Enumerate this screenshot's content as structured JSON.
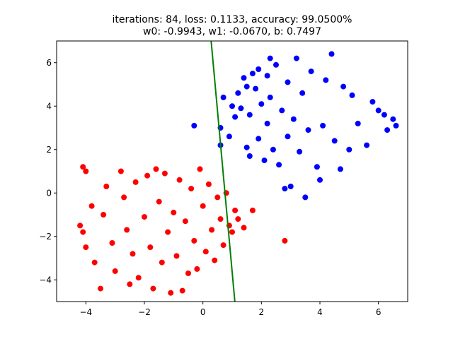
{
  "chart_data": {
    "type": "scatter",
    "title_lines": [
      "iterations: 84, loss: 0.1133, accuracy: 99.0500%",
      "w0: -0.9943, w1: -0.0670, b: 0.7497"
    ],
    "xlabel": "",
    "ylabel": "",
    "xlim": [
      -5,
      7
    ],
    "ylim": [
      -5,
      7
    ],
    "x_ticks": [
      -4,
      -2,
      0,
      2,
      4,
      6
    ],
    "y_ticks": [
      -4,
      -2,
      0,
      2,
      4,
      6
    ],
    "x_tick_labels": [
      "−4",
      "−2",
      "0",
      "2",
      "4",
      "6"
    ],
    "y_tick_labels": [
      "−4",
      "−2",
      "0",
      "2",
      "4",
      "6"
    ],
    "grid": false,
    "series": [
      {
        "color": "#0000ff",
        "points": [
          [
            -0.3,
            3.1
          ],
          [
            0.6,
            3.0
          ],
          [
            0.6,
            2.2
          ],
          [
            0.7,
            4.4
          ],
          [
            0.9,
            2.6
          ],
          [
            1.0,
            4.0
          ],
          [
            1.1,
            3.5
          ],
          [
            1.2,
            4.6
          ],
          [
            1.3,
            3.9
          ],
          [
            1.4,
            5.3
          ],
          [
            1.5,
            2.1
          ],
          [
            1.5,
            4.9
          ],
          [
            1.6,
            1.7
          ],
          [
            1.6,
            3.6
          ],
          [
            1.7,
            5.5
          ],
          [
            1.8,
            4.8
          ],
          [
            1.9,
            2.5
          ],
          [
            1.9,
            5.7
          ],
          [
            2.0,
            4.1
          ],
          [
            2.1,
            1.5
          ],
          [
            2.2,
            3.2
          ],
          [
            2.2,
            5.4
          ],
          [
            2.3,
            6.2
          ],
          [
            2.3,
            4.4
          ],
          [
            2.4,
            2.0
          ],
          [
            2.5,
            5.9
          ],
          [
            2.6,
            1.3
          ],
          [
            2.7,
            3.8
          ],
          [
            2.8,
            0.2
          ],
          [
            2.9,
            2.6
          ],
          [
            2.9,
            5.1
          ],
          [
            3.0,
            0.3
          ],
          [
            3.1,
            3.4
          ],
          [
            3.2,
            6.2
          ],
          [
            3.3,
            1.9
          ],
          [
            3.4,
            4.6
          ],
          [
            3.5,
            -0.2
          ],
          [
            3.6,
            2.9
          ],
          [
            3.7,
            5.6
          ],
          [
            3.9,
            1.2
          ],
          [
            4.0,
            0.6
          ],
          [
            4.1,
            3.1
          ],
          [
            4.2,
            5.2
          ],
          [
            4.4,
            6.4
          ],
          [
            4.5,
            2.4
          ],
          [
            4.7,
            1.1
          ],
          [
            4.8,
            4.9
          ],
          [
            5.0,
            2.0
          ],
          [
            5.1,
            4.5
          ],
          [
            5.3,
            3.2
          ],
          [
            5.6,
            2.2
          ],
          [
            5.8,
            4.2
          ],
          [
            6.0,
            3.8
          ],
          [
            6.2,
            3.6
          ],
          [
            6.3,
            2.9
          ],
          [
            6.5,
            3.4
          ],
          [
            6.6,
            3.1
          ]
        ]
      },
      {
        "color": "#ff0000",
        "points": [
          [
            -4.1,
            1.2
          ],
          [
            -4.0,
            1.0
          ],
          [
            -4.2,
            -1.5
          ],
          [
            -4.1,
            -1.8
          ],
          [
            -4.0,
            -2.5
          ],
          [
            -3.8,
            -0.6
          ],
          [
            -3.7,
            -3.2
          ],
          [
            -3.5,
            -4.4
          ],
          [
            -3.4,
            -1.0
          ],
          [
            -3.3,
            0.3
          ],
          [
            -3.1,
            -2.3
          ],
          [
            -3.0,
            -3.6
          ],
          [
            -2.8,
            1.0
          ],
          [
            -2.7,
            -0.2
          ],
          [
            -2.6,
            -1.7
          ],
          [
            -2.5,
            -4.2
          ],
          [
            -2.4,
            -2.8
          ],
          [
            -2.3,
            0.5
          ],
          [
            -2.2,
            -3.9
          ],
          [
            -2.0,
            -1.1
          ],
          [
            -1.9,
            0.8
          ],
          [
            -1.8,
            -2.5
          ],
          [
            -1.7,
            -4.4
          ],
          [
            -1.6,
            1.1
          ],
          [
            -1.5,
            -0.4
          ],
          [
            -1.4,
            -3.2
          ],
          [
            -1.3,
            0.9
          ],
          [
            -1.2,
            -1.8
          ],
          [
            -1.1,
            -4.6
          ],
          [
            -1.0,
            -0.9
          ],
          [
            -0.9,
            -2.9
          ],
          [
            -0.8,
            0.6
          ],
          [
            -0.7,
            -4.5
          ],
          [
            -0.6,
            -1.3
          ],
          [
            -0.5,
            -3.7
          ],
          [
            -0.4,
            0.2
          ],
          [
            -0.3,
            -2.2
          ],
          [
            -0.2,
            -3.5
          ],
          [
            -0.1,
            1.1
          ],
          [
            0.0,
            -0.6
          ],
          [
            0.1,
            -2.7
          ],
          [
            0.2,
            0.4
          ],
          [
            0.3,
            -1.7
          ],
          [
            0.4,
            -3.1
          ],
          [
            0.5,
            -0.2
          ],
          [
            0.6,
            -1.2
          ],
          [
            0.7,
            -2.4
          ],
          [
            0.8,
            0.0
          ],
          [
            0.9,
            -1.5
          ],
          [
            1.0,
            -1.8
          ],
          [
            1.1,
            -0.8
          ],
          [
            1.2,
            -1.2
          ],
          [
            1.4,
            -1.6
          ],
          [
            1.7,
            -0.8
          ],
          [
            2.8,
            -2.2
          ]
        ]
      }
    ],
    "decision_line": {
      "color": "#008000",
      "w0": -0.9943,
      "w1": -0.067,
      "b": 0.7497
    }
  }
}
